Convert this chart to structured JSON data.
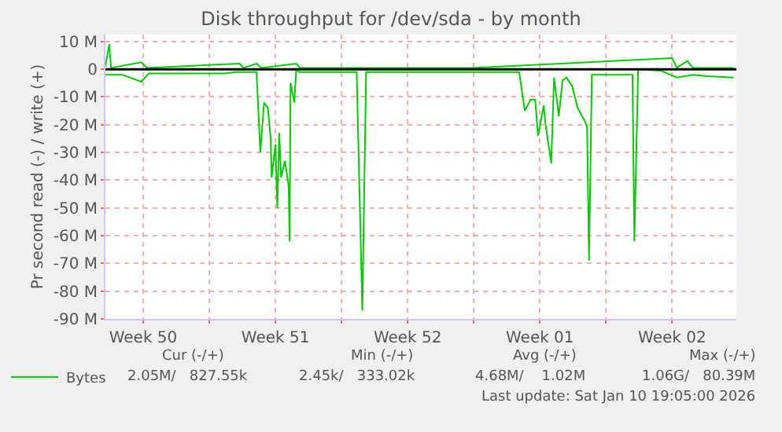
{
  "chart_data": {
    "type": "line",
    "title": "Disk throughput for /dev/sda - by month",
    "ylabel": "Pr second read (-) / write (+)",
    "xlim": [
      "2025-12-09T12:00",
      "2026-01-11T21:36"
    ],
    "xticks": [
      {
        "value": "2025-12-11T12:00",
        "label": "Week 50"
      },
      {
        "value": "2025-12-15",
        "label": null
      },
      {
        "value": "2025-12-18T12:00",
        "label": "Week 51"
      },
      {
        "value": "2025-12-22",
        "label": null
      },
      {
        "value": "2025-12-25T12:00",
        "label": "Week 52"
      },
      {
        "value": "2025-12-29",
        "label": null
      },
      {
        "value": "2026-01-01T12:00",
        "label": "Week 01"
      },
      {
        "value": "2026-01-05",
        "label": null
      },
      {
        "value": "2026-01-08T12:00",
        "label": "Week 02"
      }
    ],
    "ylim": [
      -90,
      12.5
    ],
    "yticks": [
      {
        "value": -90,
        "label": "-90 M"
      },
      {
        "value": -80,
        "label": "-80 M"
      },
      {
        "value": -70,
        "label": "-70 M"
      },
      {
        "value": -60,
        "label": "-60 M"
      },
      {
        "value": -50,
        "label": "-50 M"
      },
      {
        "value": -40,
        "label": "-40 M"
      },
      {
        "value": -30,
        "label": "-30 M"
      },
      {
        "value": -20,
        "label": "-20 M"
      },
      {
        "value": -10,
        "label": "-10 M"
      },
      {
        "value": 0,
        "label": "0"
      },
      {
        "value": 10,
        "label": "10 M"
      }
    ],
    "grid": true,
    "legend": "bottom left",
    "marker": "none",
    "line_style": "solid",
    "ref_lines": [
      {
        "axis": "y",
        "value": 0,
        "color": "#000000"
      }
    ],
    "series": [
      {
        "name": "Bytes",
        "color": "#00cc00",
        "x": [
          "2025-12-09T12:00",
          "2025-12-10T09:36",
          "2025-12-11T09:36",
          "2025-12-11T19:12",
          "2025-12-13T21:36",
          "2025-12-15T19:12",
          "2025-12-16T09:36",
          "2025-12-17T12:00",
          "2025-12-17T16:48",
          "2025-12-17T21:36",
          "2025-12-18T02:24",
          "2025-12-18T06:00",
          "2025-12-18T07:12",
          "2025-12-18T12:00",
          "2025-12-18T14:24",
          "2025-12-18T16:48",
          "2025-12-18T19:12",
          "2025-12-19T00:00",
          "2025-12-19T04:48",
          "2025-12-19T06:00",
          "2025-12-19T07:12",
          "2025-12-19T12:00",
          "2025-12-19T14:24",
          "2025-12-19T18:00",
          "2025-12-21T09:36",
          "2025-12-22T19:12",
          "2025-12-23T02:24",
          "2025-12-23T07:12",
          "2025-12-25T12:00",
          "2025-12-28T21:36",
          "2025-12-30T14:24",
          "2025-12-31T09:36",
          "2025-12-31T16:48",
          "2026-01-01T00:00",
          "2026-01-01T06:00",
          "2026-01-01T09:36",
          "2026-01-01T16:48",
          "2026-01-01T19:12",
          "2026-01-02T02:24",
          "2026-01-02T06:00",
          "2026-01-02T12:00",
          "2026-01-02T16:48",
          "2026-01-02T21:36",
          "2026-01-03T04:48",
          "2026-01-03T12:00",
          "2026-01-03T21:36",
          "2026-01-04T00:00",
          "2026-01-04T02:24",
          "2026-01-04T06:00",
          "2026-01-06T09:36",
          "2026-01-06T12:00",
          "2026-01-06T16:48",
          "2026-01-07T21:36",
          "2026-01-08T18:00",
          "2026-01-09T14:24",
          "2026-01-10T09:36",
          "2026-01-11T18:00"
        ],
        "values": [
          -2,
          -2,
          -4.5,
          -1.5,
          -1.5,
          -1.5,
          -1,
          -1,
          -30,
          -12,
          -14,
          -25,
          -39,
          -27,
          -50,
          -23,
          -39,
          -33,
          -42,
          -62,
          -5,
          -12,
          0,
          -1,
          -1,
          -1,
          -87,
          -1,
          -1,
          -1,
          -1,
          -1,
          -15,
          -11,
          -11,
          -24,
          -13,
          -20,
          -34,
          -3,
          -17,
          -4,
          -3,
          -6,
          -14,
          -19,
          -21,
          -69,
          -2,
          -2,
          -62,
          0,
          -0.5,
          -3,
          -2,
          -2.5,
          -3
        ]
      },
      {
        "color": "#00cc00",
        "x": [
          "2025-12-09T12:00",
          "2025-12-09T16:48",
          "2025-12-09T19:12",
          "2025-12-11T09:36",
          "2025-12-11T16:48",
          "2025-12-16T14:24",
          "2025-12-16T19:12",
          "2025-12-17T12:00",
          "2025-12-17T18:00",
          "2025-12-19T14:24",
          "2025-12-19T19:12",
          "2025-12-28T21:36",
          "2026-01-08T12:00",
          "2026-01-08T18:00",
          "2026-01-09T07:12",
          "2026-01-09T14:24",
          "2026-01-11T18:00"
        ],
        "values": [
          1,
          9,
          0.5,
          2.5,
          0.5,
          2,
          0.5,
          2,
          0.5,
          2,
          0.5,
          0.5,
          4,
          0.5,
          3,
          0.5,
          0.5
        ]
      }
    ],
    "annotations": [
      "Cur (-/+)",
      "Min (-/+)",
      "Avg (-/+)",
      "Max (-/+)",
      "2.05M/   827.55k",
      "2.45k/   333.02k",
      "4.68M/    1.02M",
      "1.06G/   80.39M",
      "Last update: Sat Jan 10 19:05:00 2026"
    ]
  }
}
